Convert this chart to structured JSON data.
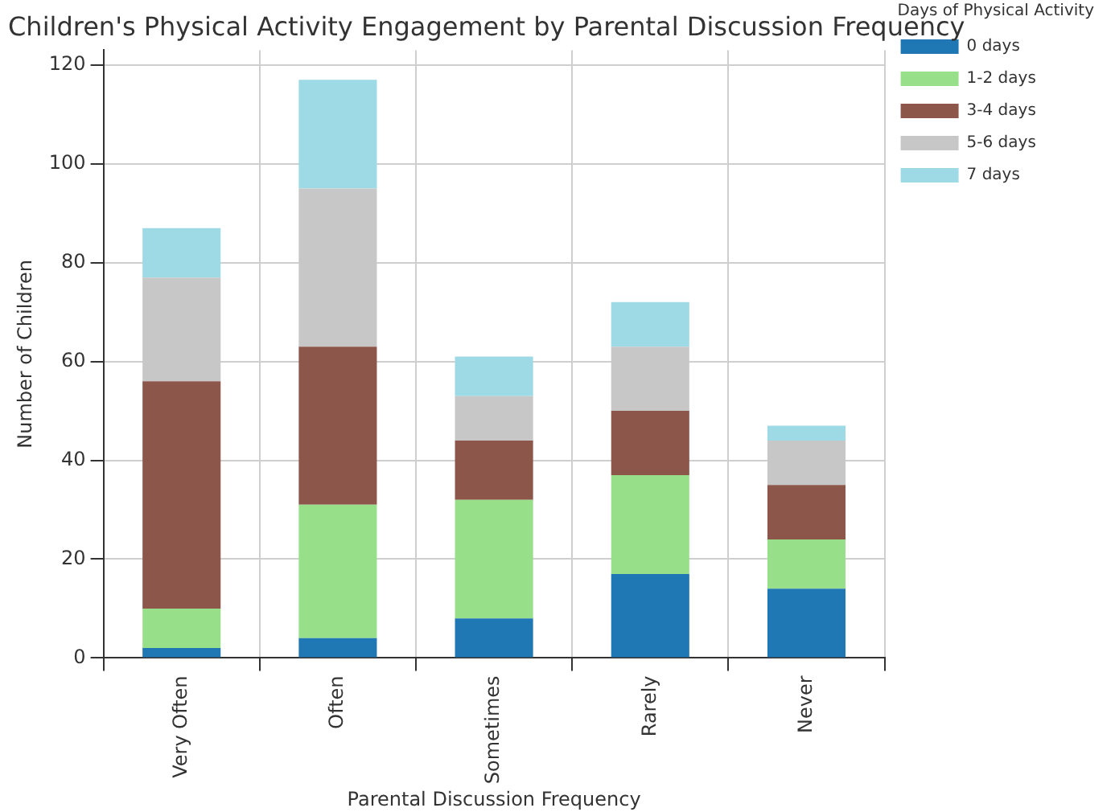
{
  "chart_data": {
    "type": "bar",
    "title": "Children's Physical Activity Engagement by Parental Discussion Frequency",
    "xlabel": "Parental Discussion Frequency",
    "ylabel": "Number of Children",
    "legend_title": "Days of Physical Activity",
    "categories": [
      "Very Often",
      "Often",
      "Sometimes",
      "Rarely",
      "Never"
    ],
    "series": [
      {
        "name": "0 days",
        "color": "#1f77b4",
        "values": [
          2,
          4,
          8,
          17,
          14
        ]
      },
      {
        "name": "1-2 days",
        "color": "#98df8a",
        "values": [
          8,
          27,
          24,
          20,
          10
        ]
      },
      {
        "name": "3-4 days",
        "color": "#8c564b",
        "values": [
          46,
          32,
          12,
          13,
          11
        ]
      },
      {
        "name": "5-6 days",
        "color": "#c7c7c7",
        "values": [
          21,
          32,
          9,
          13,
          9
        ]
      },
      {
        "name": "7 days",
        "color": "#9edae5",
        "values": [
          10,
          22,
          8,
          9,
          3
        ]
      }
    ],
    "stacked": true,
    "ylim": [
      0,
      123
    ],
    "yticks": [
      0,
      20,
      40,
      60,
      80,
      100,
      120
    ],
    "grid": true,
    "legend": "top right"
  }
}
